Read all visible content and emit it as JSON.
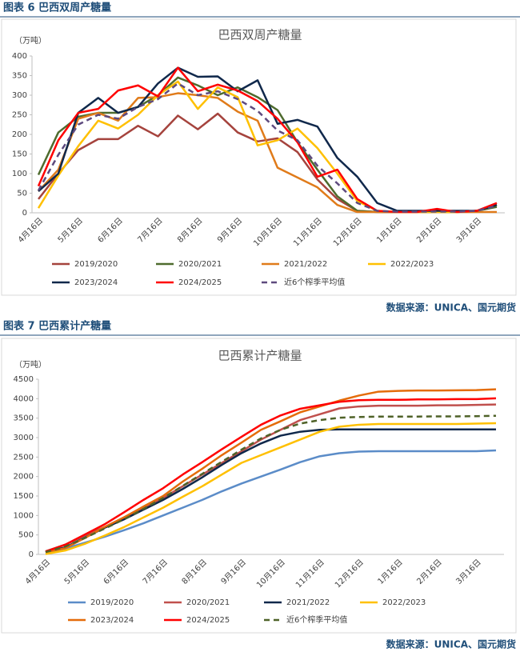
{
  "captions": [
    "图表 6  巴西双周产糖量",
    "图表 7  巴西累计产糖量"
  ],
  "sources": [
    "数据来源：UNICA、国元期货",
    "数据来源：UNICA、国元期货"
  ],
  "chart_data": [
    {
      "type": "line",
      "title": "巴西双周产糖量",
      "ylabel": "（万吨）",
      "categories": [
        "4月16日",
        null,
        "5月16日",
        null,
        "6月16日",
        null,
        "7月16日",
        null,
        "8月16日",
        null,
        "9月16日",
        null,
        "10月16日",
        null,
        "11月16日",
        null,
        "12月16日",
        null,
        "1月16日",
        null,
        "2月16日",
        null,
        "3月16日",
        null
      ],
      "ylim": [
        0,
        400
      ],
      "yticks": [
        0,
        50,
        100,
        150,
        200,
        250,
        300,
        350,
        400
      ],
      "series": [
        {
          "name": "2019/2020",
          "color": "#a5433d",
          "values": [
            35,
            100,
            160,
            188,
            188,
            222,
            195,
            248,
            213,
            253,
            205,
            182,
            190,
            155,
            85,
            35,
            5,
            2,
            2,
            2,
            2,
            2,
            5,
            20
          ]
        },
        {
          "name": "2020/2021",
          "color": "#4e6b2e",
          "values": [
            97,
            205,
            245,
            255,
            255,
            270,
            300,
            345,
            325,
            300,
            320,
            295,
            262,
            180,
            110,
            42,
            5,
            2,
            2,
            2,
            2,
            2,
            5,
            15
          ]
        },
        {
          "name": "2021/2022",
          "color": "#e07b1a",
          "values": [
            55,
            110,
            240,
            255,
            235,
            293,
            295,
            305,
            300,
            293,
            258,
            235,
            115,
            90,
            65,
            20,
            2,
            2,
            2,
            2,
            2,
            2,
            2,
            2
          ]
        },
        {
          "name": "2022/2023",
          "color": "#ffc000",
          "values": [
            12,
            95,
            170,
            235,
            215,
            250,
            300,
            335,
            265,
            320,
            295,
            172,
            185,
            215,
            165,
            100,
            30,
            5,
            2,
            2,
            2,
            2,
            5,
            20
          ]
        },
        {
          "name": "2023/2024",
          "color": "#10284b",
          "values": [
            55,
            100,
            255,
            293,
            255,
            270,
            330,
            370,
            347,
            348,
            310,
            338,
            227,
            237,
            220,
            140,
            92,
            25,
            5,
            5,
            5,
            5,
            5,
            20
          ]
        },
        {
          "name": "2024/2025",
          "color": "#ff0000",
          "values": [
            68,
            185,
            255,
            265,
            312,
            325,
            297,
            370,
            310,
            327,
            312,
            285,
            240,
            180,
            92,
            110,
            35,
            5,
            2,
            2,
            10,
            2,
            5,
            25
          ]
        },
        {
          "name": "近6个榨季平均值",
          "color": "#5e4a7e",
          "dashed": true,
          "values": [
            57,
            148,
            225,
            250,
            240,
            270,
            290,
            330,
            300,
            310,
            290,
            260,
            210,
            185,
            120,
            75,
            25,
            5,
            3,
            3,
            3,
            3,
            5,
            18
          ]
        }
      ]
    },
    {
      "type": "line",
      "title": "巴西累计产糖量",
      "ylabel": "（万吨）",
      "categories": [
        "4月16日",
        null,
        "5月16日",
        null,
        "6月16日",
        null,
        "7月16日",
        null,
        "8月16日",
        null,
        "9月16日",
        null,
        "10月16日",
        null,
        "11月16日",
        null,
        "12月16日",
        null,
        "1月16日",
        null,
        "2月16日",
        null,
        "3月16日",
        null
      ],
      "ylim": [
        0,
        4500
      ],
      "yticks": [
        0,
        500,
        1000,
        1500,
        2000,
        2500,
        3000,
        3500,
        4000,
        4500
      ],
      "series": [
        {
          "name": "2019/2020",
          "color": "#5b8cc8",
          "values": [
            50,
            150,
            300,
            450,
            620,
            800,
            1000,
            1200,
            1400,
            1620,
            1820,
            2000,
            2180,
            2370,
            2520,
            2600,
            2640,
            2650,
            2650,
            2650,
            2650,
            2650,
            2650,
            2670
          ]
        },
        {
          "name": "2020/2021",
          "color": "#c0504d",
          "values": [
            80,
            250,
            480,
            700,
            950,
            1200,
            1450,
            1750,
            2050,
            2350,
            2650,
            2950,
            3200,
            3450,
            3600,
            3750,
            3800,
            3820,
            3820,
            3820,
            3830,
            3830,
            3840,
            3850
          ]
        },
        {
          "name": "2021/2022",
          "color": "#10284b",
          "values": [
            60,
            180,
            430,
            680,
            900,
            1150,
            1400,
            1680,
            1980,
            2300,
            2600,
            2850,
            3050,
            3150,
            3200,
            3210,
            3210,
            3210,
            3210,
            3210,
            3210,
            3210,
            3210,
            3210
          ]
        },
        {
          "name": "2022/2023",
          "color": "#ffc000",
          "values": [
            10,
            100,
            270,
            480,
            700,
            950,
            1200,
            1480,
            1750,
            2050,
            2350,
            2550,
            2750,
            2950,
            3150,
            3280,
            3330,
            3350,
            3350,
            3350,
            3350,
            3350,
            3360,
            3370
          ]
        },
        {
          "name": "2023/2024",
          "color": "#e46c0a",
          "values": [
            60,
            160,
            420,
            700,
            950,
            1230,
            1500,
            1870,
            2200,
            2550,
            2870,
            3200,
            3420,
            3650,
            3800,
            3950,
            4080,
            4180,
            4200,
            4210,
            4210,
            4215,
            4220,
            4240
          ]
        },
        {
          "name": "2024/2025",
          "color": "#ff0000",
          "values": [
            70,
            250,
            510,
            770,
            1080,
            1400,
            1700,
            2050,
            2370,
            2700,
            3020,
            3330,
            3570,
            3740,
            3830,
            3920,
            3960,
            3970,
            3970,
            3980,
            3980,
            3990,
            3990,
            4010
          ]
        },
        {
          "name": "近6个榨季平均值",
          "color": "#4f6228",
          "dashed": true,
          "values": [
            60,
            200,
            420,
            660,
            900,
            1170,
            1450,
            1760,
            2070,
            2380,
            2690,
            2980,
            3200,
            3360,
            3450,
            3510,
            3530,
            3540,
            3540,
            3540,
            3545,
            3545,
            3550,
            3560
          ]
        }
      ]
    }
  ]
}
